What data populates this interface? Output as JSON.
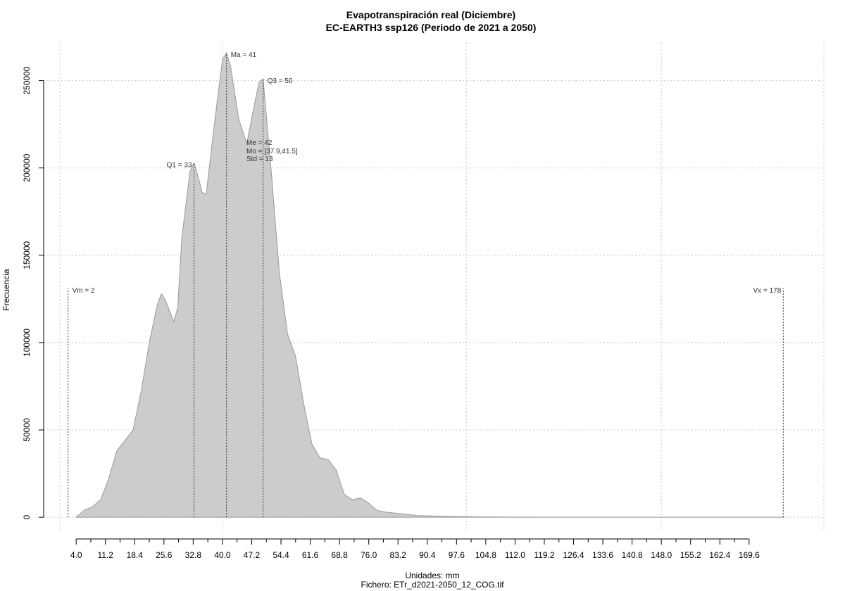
{
  "chart_data": {
    "type": "area",
    "title": "Evapotranspiración real (Diciembre)",
    "subtitle": "EC-EARTH3 ssp126 (Periodo de 2021 a 2050)",
    "xlabel": "Unidades: mm",
    "source_file": "Fichero: ETr_d2021-2050_12_COG.tif",
    "ylabel": "Frecuencia",
    "xlim": [
      -4,
      188
    ],
    "ylim": [
      -8000,
      272000
    ],
    "x_ticks": [
      "4.0",
      "11.2",
      "18.4",
      "25.6",
      "32.8",
      "40.0",
      "47.2",
      "54.4",
      "61.6",
      "68.8",
      "76.0",
      "83.2",
      "90.4",
      "97.6",
      "104.8",
      "112.0",
      "119.2",
      "126.4",
      "133.6",
      "140.8",
      "148.0",
      "155.2",
      "162.4",
      "169.6"
    ],
    "y_ticks": [
      0,
      50000,
      100000,
      150000,
      200000,
      250000
    ],
    "grid": true,
    "series": [
      {
        "x": [
          4,
          5,
          6,
          8,
          10,
          12,
          14,
          16,
          18,
          20,
          22,
          24,
          25,
          26,
          28,
          29,
          30,
          32,
          33,
          34,
          35,
          36,
          38,
          40,
          41,
          42,
          44,
          46,
          48,
          49,
          50,
          52,
          54,
          56,
          58,
          60,
          62,
          64,
          66,
          68,
          70,
          72,
          74,
          76,
          78,
          80,
          84,
          88,
          92,
          96,
          100,
          104,
          110,
          120,
          140,
          160,
          178
        ],
        "y": [
          0,
          2000,
          4000,
          6000,
          10000,
          22000,
          38000,
          44000,
          50000,
          72000,
          100000,
          122000,
          128000,
          124000,
          112000,
          120000,
          160000,
          198000,
          203000,
          195000,
          186000,
          185000,
          225000,
          262000,
          266000,
          258000,
          228000,
          214000,
          238000,
          249000,
          251000,
          198000,
          140000,
          105000,
          92000,
          65000,
          42000,
          34000,
          33000,
          27000,
          13000,
          10000,
          11000,
          8000,
          4000,
          3000,
          2000,
          1000,
          700,
          400,
          300,
          150,
          80,
          40,
          15,
          5,
          0
        ]
      }
    ],
    "markers": [
      {
        "label": "Vm = 2",
        "x": 2,
        "y_top": 131000,
        "label_side": "right"
      },
      {
        "label": "Q1 = 33",
        "x": 33,
        "y_top": 203000,
        "label_side": "left"
      },
      {
        "label": "Ma = 41",
        "x": 41,
        "y_top": 266000,
        "label_side": "right"
      },
      {
        "label": "Q3 = 50",
        "x": 50,
        "y_top": 251000,
        "label_side": "right"
      },
      {
        "label": "Vx = 178",
        "x": 178,
        "y_top": 131000,
        "label_side": "left"
      }
    ],
    "stats_text": [
      "Me = 42",
      "Mo = [37.9,41.5]",
      "Std = 13"
    ]
  }
}
